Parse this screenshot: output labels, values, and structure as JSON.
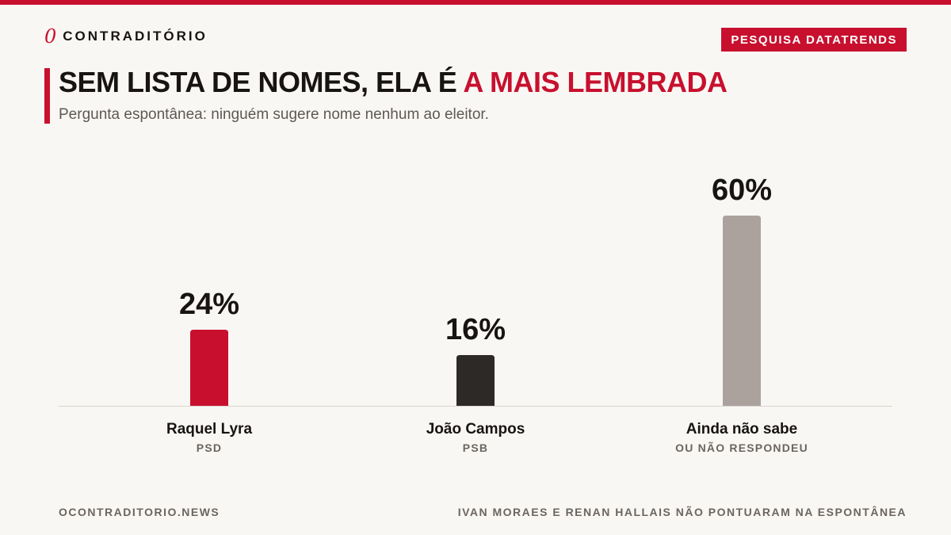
{
  "brand": {
    "mark": "0",
    "name": "CONTRADITÓRIO"
  },
  "badge": "PESQUISA DATATRENDS",
  "headline": {
    "prefix": "SEM LISTA DE NOMES, ELA É ",
    "highlight": "A MAIS LEMBRADA"
  },
  "subtitle": "Pergunta espontânea: ninguém sugere nome nenhum ao eleitor.",
  "colors": {
    "accent": "#c8102e",
    "dark": "#2d2926",
    "muted": "#aba29d",
    "background": "#f9f7f4"
  },
  "chart_data": {
    "type": "bar",
    "categories": [
      "Raquel Lyra",
      "João Campos",
      "Ainda não sabe"
    ],
    "sublabels": [
      "PSD",
      "PSB",
      "OU NÃO RESPONDEU"
    ],
    "values": [
      24,
      16,
      60
    ],
    "value_labels": [
      "24%",
      "16%",
      "60%"
    ],
    "unit": "%",
    "ylim": [
      0,
      60
    ],
    "bar_colors": [
      "#c8102e",
      "#2d2926",
      "#aba29d"
    ],
    "grid": false,
    "legend": "none"
  },
  "footer": {
    "left": "OCONTRADITORIO.NEWS",
    "right": "IVAN MORAES E RENAN HALLAIS NÃO PONTUARAM NA ESPONTÂNEA"
  }
}
